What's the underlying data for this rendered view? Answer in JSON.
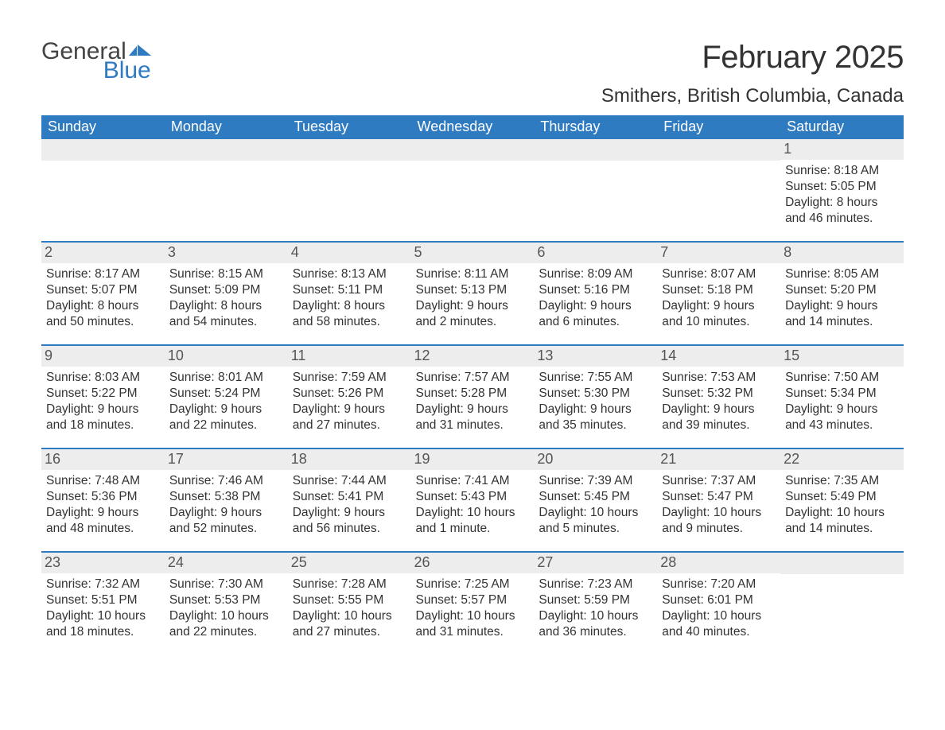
{
  "logo": {
    "word1": "General",
    "word2": "Blue",
    "flag_color": "#2f7bc1"
  },
  "title": "February 2025",
  "location": "Smithers, British Columbia, Canada",
  "colors": {
    "header_bg": "#2f7bc1",
    "header_text": "#ffffff",
    "daynum_bg": "#ededed",
    "row_border": "#2f7bc1",
    "body_text": "#333333"
  },
  "fonts": {
    "title_size_pt": 30,
    "location_size_pt": 18,
    "weekday_size_pt": 14,
    "daynum_size_pt": 14,
    "info_size_pt": 12
  },
  "weekdays": [
    "Sunday",
    "Monday",
    "Tuesday",
    "Wednesday",
    "Thursday",
    "Friday",
    "Saturday"
  ],
  "weeks": [
    [
      {
        "day": null
      },
      {
        "day": null
      },
      {
        "day": null
      },
      {
        "day": null
      },
      {
        "day": null
      },
      {
        "day": null
      },
      {
        "day": 1,
        "sunrise": "8:18 AM",
        "sunset": "5:05 PM",
        "daylight": "8 hours and 46 minutes."
      }
    ],
    [
      {
        "day": 2,
        "sunrise": "8:17 AM",
        "sunset": "5:07 PM",
        "daylight": "8 hours and 50 minutes."
      },
      {
        "day": 3,
        "sunrise": "8:15 AM",
        "sunset": "5:09 PM",
        "daylight": "8 hours and 54 minutes."
      },
      {
        "day": 4,
        "sunrise": "8:13 AM",
        "sunset": "5:11 PM",
        "daylight": "8 hours and 58 minutes."
      },
      {
        "day": 5,
        "sunrise": "8:11 AM",
        "sunset": "5:13 PM",
        "daylight": "9 hours and 2 minutes."
      },
      {
        "day": 6,
        "sunrise": "8:09 AM",
        "sunset": "5:16 PM",
        "daylight": "9 hours and 6 minutes."
      },
      {
        "day": 7,
        "sunrise": "8:07 AM",
        "sunset": "5:18 PM",
        "daylight": "9 hours and 10 minutes."
      },
      {
        "day": 8,
        "sunrise": "8:05 AM",
        "sunset": "5:20 PM",
        "daylight": "9 hours and 14 minutes."
      }
    ],
    [
      {
        "day": 9,
        "sunrise": "8:03 AM",
        "sunset": "5:22 PM",
        "daylight": "9 hours and 18 minutes."
      },
      {
        "day": 10,
        "sunrise": "8:01 AM",
        "sunset": "5:24 PM",
        "daylight": "9 hours and 22 minutes."
      },
      {
        "day": 11,
        "sunrise": "7:59 AM",
        "sunset": "5:26 PM",
        "daylight": "9 hours and 27 minutes."
      },
      {
        "day": 12,
        "sunrise": "7:57 AM",
        "sunset": "5:28 PM",
        "daylight": "9 hours and 31 minutes."
      },
      {
        "day": 13,
        "sunrise": "7:55 AM",
        "sunset": "5:30 PM",
        "daylight": "9 hours and 35 minutes."
      },
      {
        "day": 14,
        "sunrise": "7:53 AM",
        "sunset": "5:32 PM",
        "daylight": "9 hours and 39 minutes."
      },
      {
        "day": 15,
        "sunrise": "7:50 AM",
        "sunset": "5:34 PM",
        "daylight": "9 hours and 43 minutes."
      }
    ],
    [
      {
        "day": 16,
        "sunrise": "7:48 AM",
        "sunset": "5:36 PM",
        "daylight": "9 hours and 48 minutes."
      },
      {
        "day": 17,
        "sunrise": "7:46 AM",
        "sunset": "5:38 PM",
        "daylight": "9 hours and 52 minutes."
      },
      {
        "day": 18,
        "sunrise": "7:44 AM",
        "sunset": "5:41 PM",
        "daylight": "9 hours and 56 minutes."
      },
      {
        "day": 19,
        "sunrise": "7:41 AM",
        "sunset": "5:43 PM",
        "daylight": "10 hours and 1 minute."
      },
      {
        "day": 20,
        "sunrise": "7:39 AM",
        "sunset": "5:45 PM",
        "daylight": "10 hours and 5 minutes."
      },
      {
        "day": 21,
        "sunrise": "7:37 AM",
        "sunset": "5:47 PM",
        "daylight": "10 hours and 9 minutes."
      },
      {
        "day": 22,
        "sunrise": "7:35 AM",
        "sunset": "5:49 PM",
        "daylight": "10 hours and 14 minutes."
      }
    ],
    [
      {
        "day": 23,
        "sunrise": "7:32 AM",
        "sunset": "5:51 PM",
        "daylight": "10 hours and 18 minutes."
      },
      {
        "day": 24,
        "sunrise": "7:30 AM",
        "sunset": "5:53 PM",
        "daylight": "10 hours and 22 minutes."
      },
      {
        "day": 25,
        "sunrise": "7:28 AM",
        "sunset": "5:55 PM",
        "daylight": "10 hours and 27 minutes."
      },
      {
        "day": 26,
        "sunrise": "7:25 AM",
        "sunset": "5:57 PM",
        "daylight": "10 hours and 31 minutes."
      },
      {
        "day": 27,
        "sunrise": "7:23 AM",
        "sunset": "5:59 PM",
        "daylight": "10 hours and 36 minutes."
      },
      {
        "day": 28,
        "sunrise": "7:20 AM",
        "sunset": "6:01 PM",
        "daylight": "10 hours and 40 minutes."
      },
      {
        "day": null
      }
    ]
  ],
  "labels": {
    "sunrise_prefix": "Sunrise: ",
    "sunset_prefix": "Sunset: ",
    "daylight_prefix": "Daylight: "
  }
}
